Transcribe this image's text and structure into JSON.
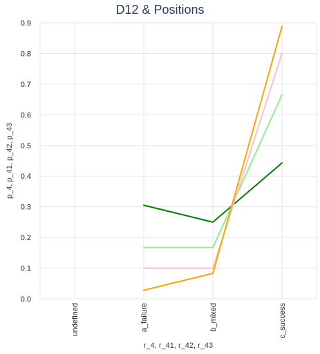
{
  "chart_data": {
    "type": "line",
    "title": "D12 & Positions",
    "xlabel": "r_4, r_41, r_42, r_43",
    "ylabel": "p_4, p_41, p_42, p_43",
    "categories": [
      "undefined",
      "a_failure",
      "b_mixed",
      "c_success"
    ],
    "ylim": [
      0,
      0.9
    ],
    "yticks": [
      0,
      0.1,
      0.2,
      0.3,
      0.4,
      0.5,
      0.6,
      0.7,
      0.8,
      0.9
    ],
    "ytick_labels": [
      "0.0",
      "0.1",
      "0.2",
      "0.3",
      "0.4",
      "0.5",
      "0.6",
      "0.7",
      "0.8",
      "0.9"
    ],
    "grid": true,
    "legend": "none",
    "series": [
      {
        "color": "#008000",
        "values": [
          null,
          0.305,
          0.25,
          0.443
        ]
      },
      {
        "color": "#90ee90",
        "values": [
          null,
          0.167,
          0.167,
          0.665
        ]
      },
      {
        "color": "#ffc0cb",
        "values": [
          null,
          0.1,
          0.1,
          0.8
        ]
      },
      {
        "color": "#ffa500",
        "values": [
          null,
          0.028,
          0.083,
          0.888
        ]
      }
    ]
  }
}
